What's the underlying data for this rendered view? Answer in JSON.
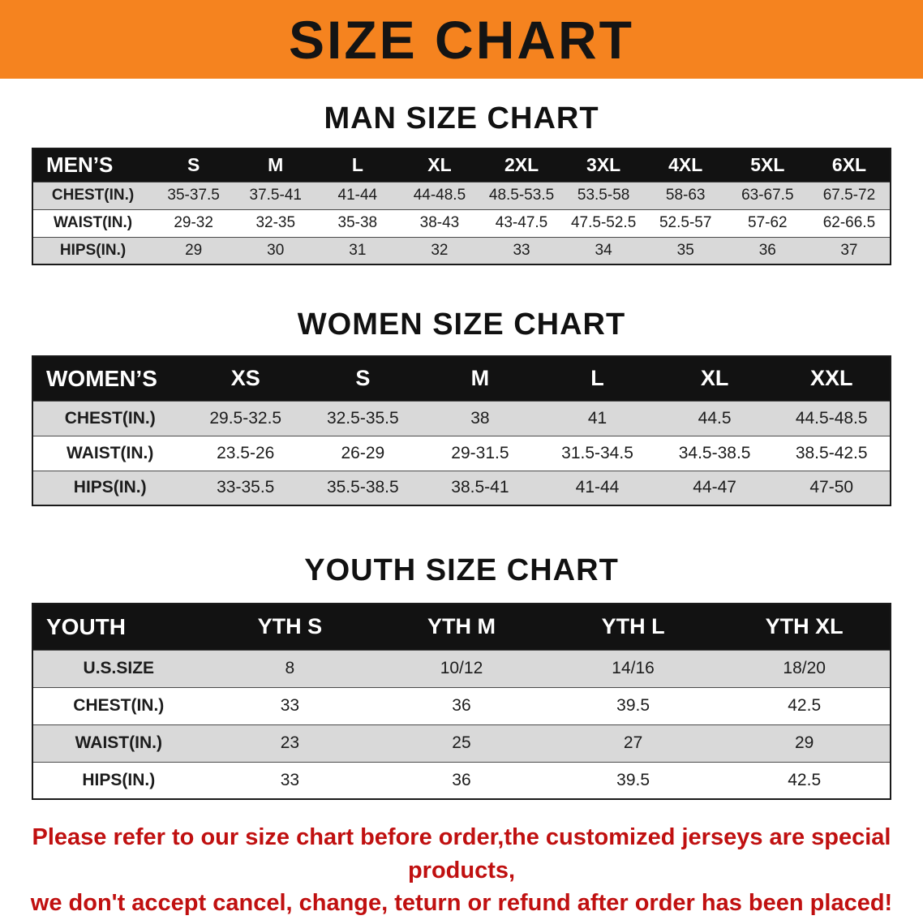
{
  "banner": {
    "title": "SIZE CHART",
    "bg_color": "#f5831f",
    "text_color": "#141414"
  },
  "sections": [
    {
      "heading": "MAN SIZE CHART",
      "table": {
        "header": [
          "MEN’S",
          "S",
          "M",
          "L",
          "XL",
          "2XL",
          "3XL",
          "4XL",
          "5XL",
          "6XL"
        ],
        "rows": [
          [
            "CHEST(IN.)",
            "35-37.5",
            "37.5-41",
            "41-44",
            "44-48.5",
            "48.5-53.5",
            "53.5-58",
            "58-63",
            "63-67.5",
            "67.5-72"
          ],
          [
            "WAIST(IN.)",
            "29-32",
            "32-35",
            "35-38",
            "38-43",
            "43-47.5",
            "47.5-52.5",
            "52.5-57",
            "57-62",
            "62-66.5"
          ],
          [
            "HIPS(IN.)",
            "29",
            "30",
            "31",
            "32",
            "33",
            "34",
            "35",
            "36",
            "37"
          ]
        ]
      }
    },
    {
      "heading": "WOMEN SIZE CHART",
      "table": {
        "header": [
          "WOMEN’S",
          "XS",
          "S",
          "M",
          "L",
          "XL",
          "XXL"
        ],
        "rows": [
          [
            "CHEST(IN.)",
            "29.5-32.5",
            "32.5-35.5",
            "38",
            "41",
            "44.5",
            "44.5-48.5"
          ],
          [
            "WAIST(IN.)",
            "23.5-26",
            "26-29",
            "29-31.5",
            "31.5-34.5",
            "34.5-38.5",
            "38.5-42.5"
          ],
          [
            "HIPS(IN.)",
            "33-35.5",
            "35.5-38.5",
            "38.5-41",
            "41-44",
            "44-47",
            "47-50"
          ]
        ]
      }
    },
    {
      "heading": "YOUTH SIZE CHART",
      "table": {
        "header": [
          "YOUTH",
          "YTH S",
          "YTH M",
          "YTH L",
          "YTH XL"
        ],
        "rows": [
          [
            "U.S.SIZE",
            "8",
            "10/12",
            "14/16",
            "18/20"
          ],
          [
            "CHEST(IN.)",
            "33",
            "36",
            "39.5",
            "42.5"
          ],
          [
            "WAIST(IN.)",
            "23",
            "25",
            "27",
            "29"
          ],
          [
            "HIPS(IN.)",
            "33",
            "36",
            "39.5",
            "42.5"
          ]
        ]
      }
    }
  ],
  "disclaimer": {
    "line1": "Please refer to our size chart before order,the customized jerseys are special products,",
    "line2": "we don't accept cancel, change, teturn or refund after order has been placed!",
    "color": "#c01010"
  }
}
